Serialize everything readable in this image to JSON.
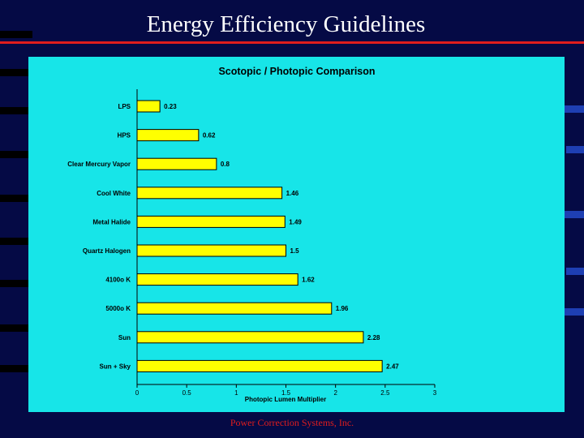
{
  "slide": {
    "title": "Energy Efficiency Guidelines",
    "footer": "Power Correction Systems, Inc."
  },
  "colors": {
    "background": "#050a45",
    "chart_panel": "#17e5e8",
    "bar_fill": "#ffff00",
    "title_rule": "#e11d1d",
    "footer_text": "#e11d1d"
  },
  "chart_data": {
    "type": "bar",
    "orientation": "horizontal",
    "title": "Scotopic / Photopic Comparison",
    "xlabel": "Photopic Lumen Multiplier",
    "ylabel": "",
    "categories": [
      "LPS",
      "HPS",
      "Clear Mercury Vapor",
      "Cool White",
      "Metal Halide",
      "Quartz Halogen",
      "4100o K",
      "5000o K",
      "Sun",
      "Sun + Sky"
    ],
    "values": [
      0.23,
      0.62,
      0.8,
      1.46,
      1.49,
      1.5,
      1.62,
      1.96,
      2.28,
      2.47
    ],
    "value_labels": [
      "0.23",
      "0.62",
      "0.8",
      "1.46",
      "1.49",
      "1.5",
      "1.62",
      "1.96",
      "2.28",
      "2.47"
    ],
    "xlim": [
      0,
      3
    ],
    "xticks": [
      "0",
      "0.5",
      "1",
      "1.5",
      "2",
      "2.5",
      "3"
    ],
    "grid": false,
    "legend": "none"
  }
}
